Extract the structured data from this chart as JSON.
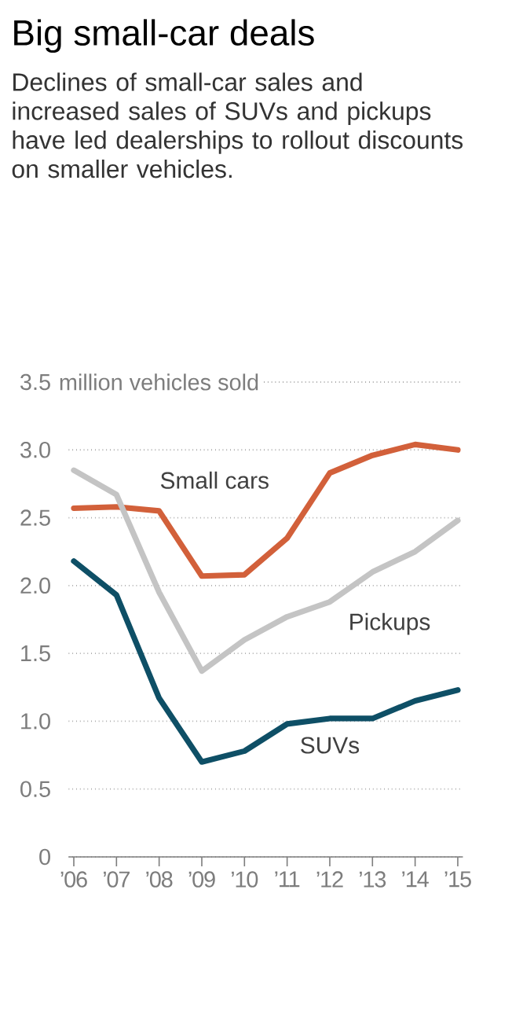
{
  "chart_data": {
    "type": "line",
    "title": "Big small-car deals",
    "subtitle": "Declines of small-car sales and increased sales of SUVs and pickups have led dealerships to rollout discounts on smaller vehicles.",
    "categories": [
      "’06",
      "’07",
      "’08",
      "’09",
      "’10",
      "’11",
      "’12",
      "’13",
      "’14",
      "’15"
    ],
    "series": [
      {
        "name": "Small cars",
        "color": "#d2603a",
        "values": [
          2.57,
          2.58,
          2.55,
          2.07,
          2.08,
          2.35,
          2.83,
          2.96,
          3.04,
          3.0
        ]
      },
      {
        "name": "Pickups",
        "color": "#c4c4c4",
        "values": [
          2.85,
          2.67,
          1.95,
          1.37,
          1.6,
          1.77,
          1.88,
          2.1,
          2.25,
          2.48
        ]
      },
      {
        "name": "SUVs",
        "color": "#0e4f66",
        "values": [
          2.18,
          1.93,
          1.17,
          0.7,
          0.78,
          0.98,
          1.02,
          1.02,
          1.15,
          1.23
        ]
      }
    ],
    "ylabel": "million vehicles sold",
    "ylim": [
      0,
      3.5
    ],
    "yticks": [
      0,
      0.5,
      {
        "value": 1,
        "label": "1.0"
      },
      1.5,
      {
        "value": 2,
        "label": "2.0"
      },
      2.5,
      {
        "value": 3,
        "label": "3.0"
      },
      3.5
    ],
    "grid": "y",
    "legend": false,
    "line_style": "solid",
    "marker": "none"
  }
}
